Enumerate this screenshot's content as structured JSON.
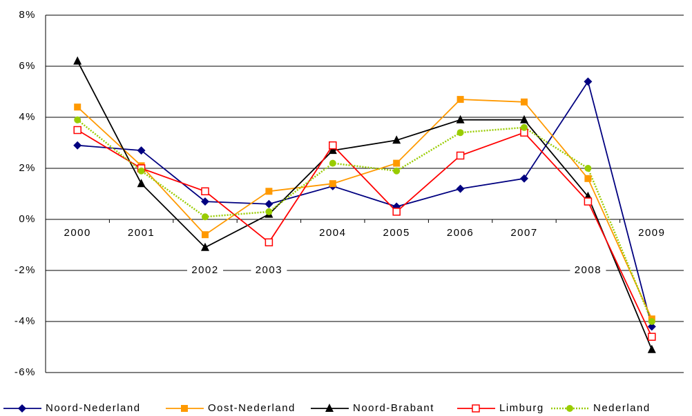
{
  "chart_data": {
    "type": "line",
    "categories": [
      "2000",
      "2001",
      "2002",
      "2003",
      "2004",
      "2005",
      "2006",
      "2007",
      "2008",
      "2009"
    ],
    "series": [
      {
        "name": "Noord-Nederland",
        "color": "#000080",
        "marker": "diamond",
        "values": [
          2.9,
          2.7,
          0.7,
          0.6,
          1.3,
          0.5,
          1.2,
          1.6,
          5.4,
          -4.2
        ]
      },
      {
        "name": "Oost-Nederland",
        "color": "#ff9900",
        "marker": "square",
        "values": [
          4.4,
          2.1,
          -0.6,
          1.1,
          1.4,
          2.2,
          4.7,
          4.6,
          1.6,
          -3.9
        ]
      },
      {
        "name": "Noord-Brabant",
        "color": "#000000",
        "marker": "triangle",
        "values": [
          6.2,
          1.4,
          -1.1,
          0.2,
          2.7,
          3.1,
          3.9,
          3.9,
          0.9,
          -5.1
        ]
      },
      {
        "name": "Limburg",
        "color": "#ff0000",
        "marker": "open-square",
        "values": [
          3.5,
          2.0,
          1.1,
          -0.9,
          2.9,
          0.3,
          2.5,
          3.4,
          0.7,
          -4.6
        ]
      },
      {
        "name": "Nederland",
        "color": "#99cc00",
        "marker": "circle",
        "dash": "dotted",
        "values": [
          3.9,
          1.9,
          0.1,
          0.3,
          2.2,
          1.9,
          3.4,
          3.6,
          2.0,
          -4.0
        ]
      }
    ],
    "ylim": [
      -6,
      8
    ],
    "yticks": [
      {
        "value": -6,
        "label": "-6%"
      },
      {
        "value": -4,
        "label": "-4%"
      },
      {
        "value": -2,
        "label": "-2%"
      },
      {
        "value": 0,
        "label": "0%"
      },
      {
        "value": 2,
        "label": "2%"
      },
      {
        "value": 4,
        "label": "4%"
      },
      {
        "value": 6,
        "label": "6%"
      },
      {
        "value": 8,
        "label": "8%"
      }
    ],
    "grid": true,
    "legend": "bottom"
  }
}
